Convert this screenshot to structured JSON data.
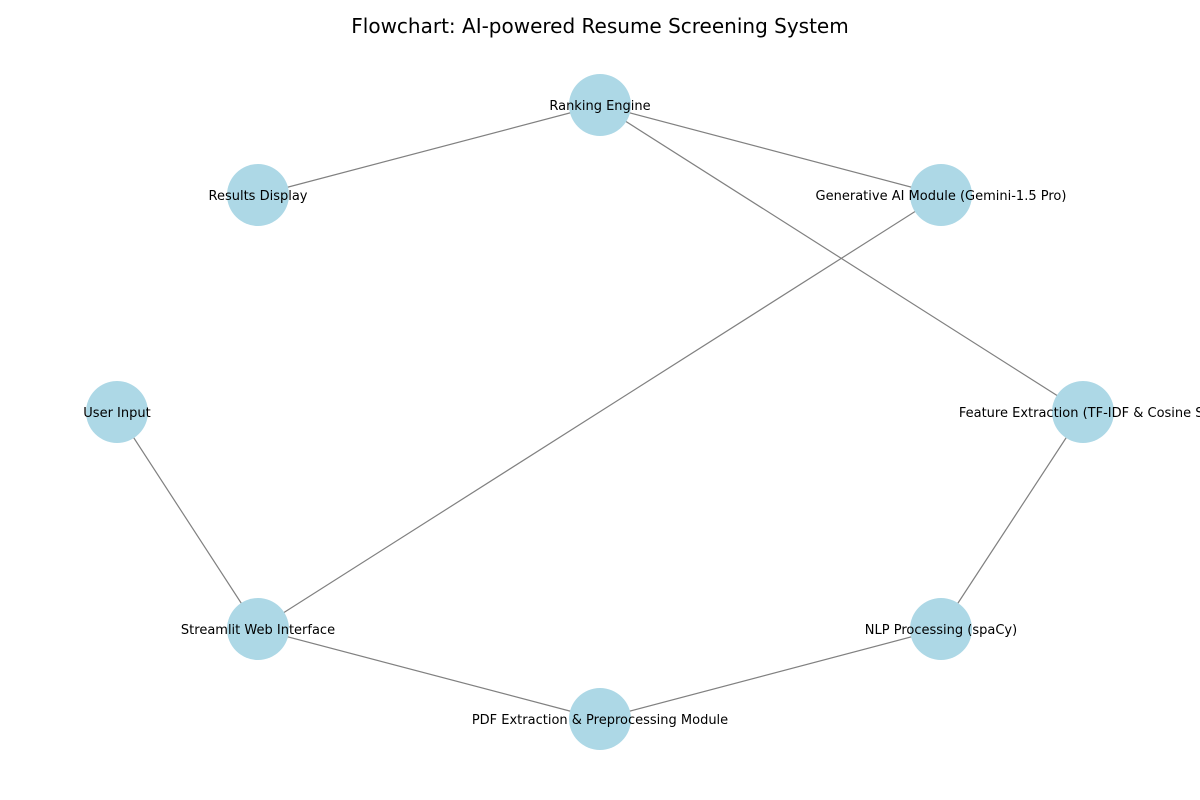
{
  "title": "Flowchart: AI-powered Resume Screening System",
  "colors": {
    "node_fill": "#add8e6",
    "edge_stroke": "#808080",
    "text": "#000000",
    "background": "#ffffff"
  },
  "nodes": [
    {
      "id": "ranking",
      "label": "Ranking Engine"
    },
    {
      "id": "results",
      "label": "Results Display"
    },
    {
      "id": "genai",
      "label": "Generative AI Module (Gemini-1.5 Pro)"
    },
    {
      "id": "user",
      "label": "User Input"
    },
    {
      "id": "feature",
      "label": "Feature Extraction (TF-IDF & Cosine Si"
    },
    {
      "id": "streamlit",
      "label": "Streamlit Web Interface"
    },
    {
      "id": "nlp",
      "label": "NLP Processing (spaCy)"
    },
    {
      "id": "pdf",
      "label": "PDF Extraction & Preprocessing Module"
    }
  ],
  "edges": [
    {
      "from": "user",
      "to": "streamlit"
    },
    {
      "from": "streamlit",
      "to": "pdf"
    },
    {
      "from": "pdf",
      "to": "nlp"
    },
    {
      "from": "nlp",
      "to": "feature"
    },
    {
      "from": "feature",
      "to": "ranking"
    },
    {
      "from": "ranking",
      "to": "genai"
    },
    {
      "from": "genai",
      "to": "streamlit"
    },
    {
      "from": "ranking",
      "to": "results"
    }
  ]
}
